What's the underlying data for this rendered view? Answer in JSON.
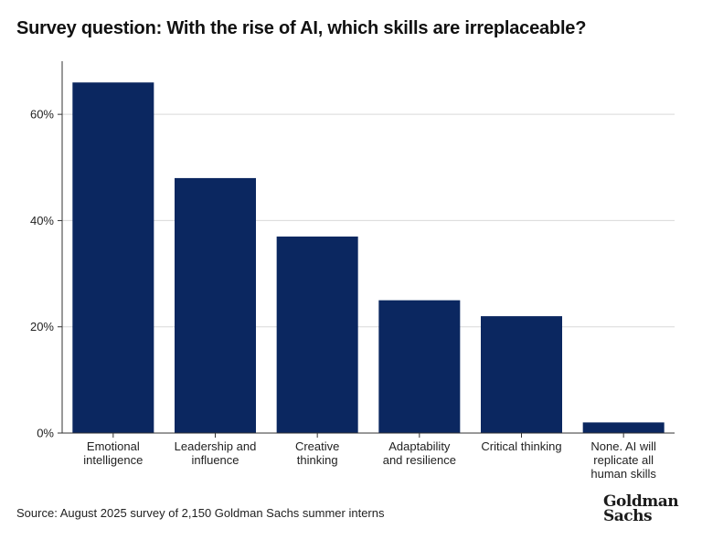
{
  "title": "Survey question: With the rise of AI, which skills are irreplaceable?",
  "source": "Source: August 2025 survey of 2,150 Goldman Sachs summer interns",
  "logo": {
    "line1": "Goldman",
    "line2": "Sachs"
  },
  "colors": {
    "bar": "#0b2760",
    "grid": "#d9d9d9",
    "axis": "#333333"
  },
  "chart_data": {
    "type": "bar",
    "categories": [
      [
        "Emotional",
        "intelligence"
      ],
      [
        "Leadership and",
        "influence"
      ],
      [
        "Creative",
        "thinking"
      ],
      [
        "Adaptability",
        "and resilience"
      ],
      [
        "Critical thinking"
      ],
      [
        "None. AI will",
        "replicate all",
        "human skills"
      ]
    ],
    "values": [
      66,
      48,
      37,
      25,
      22,
      2
    ],
    "unit": "%",
    "ylim": [
      0,
      70
    ],
    "yticks": [
      0,
      20,
      40,
      60
    ],
    "ytick_labels": [
      "0%",
      "20%",
      "40%",
      "60%"
    ],
    "grid": true,
    "title": "Survey question: With the rise of AI, which skills are irreplaceable?"
  }
}
